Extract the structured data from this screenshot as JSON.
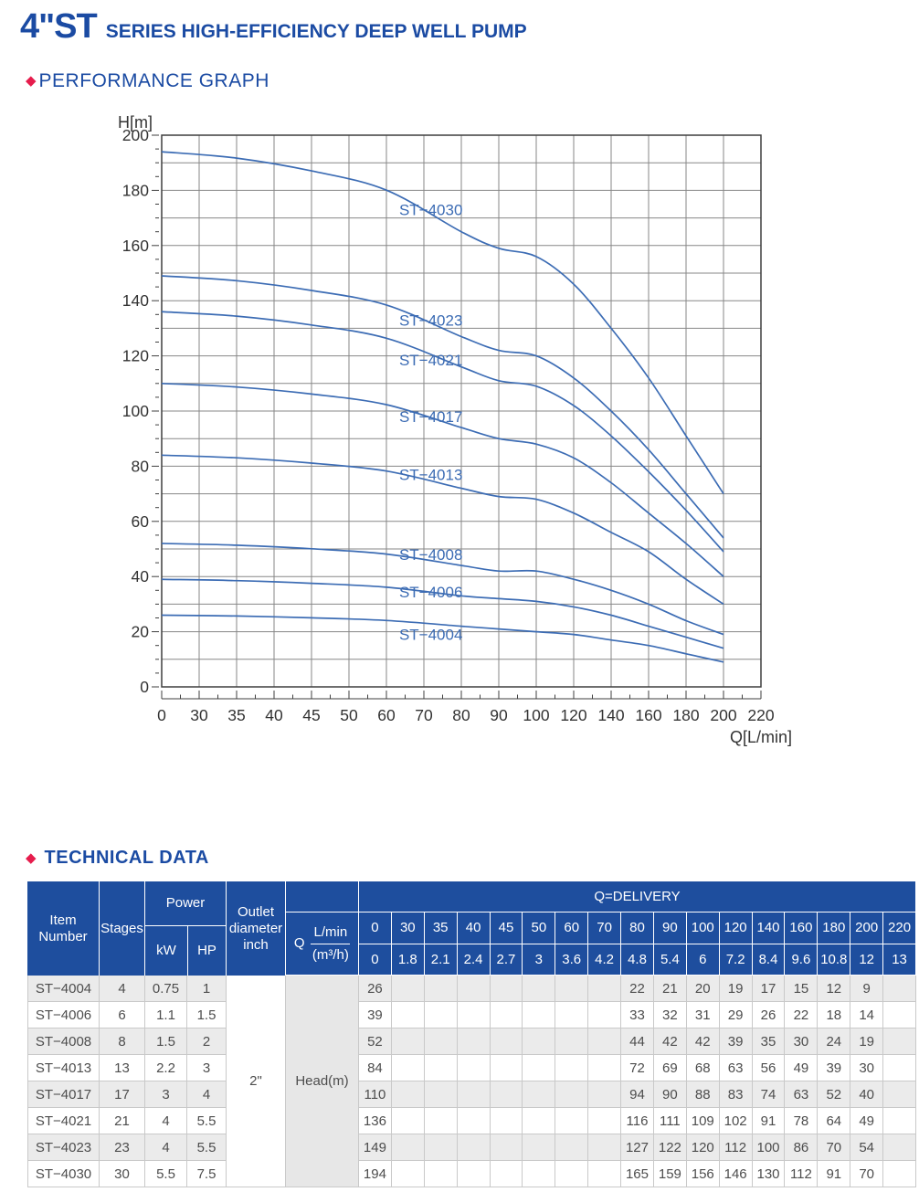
{
  "header": {
    "title_main": "4\"ST",
    "title_sub": "SERIES HIGH-EFFICIENCY DEEP WELL PUMP"
  },
  "sections": {
    "performance": {
      "bullet": "◆",
      "title": "PERFORMANCE GRAPH"
    },
    "technical": {
      "bullet": "◆",
      "title": "TECHNICAL DATA"
    }
  },
  "colors": {
    "accent_blue": "#1b4ba3",
    "diamond_red": "#e61c4c",
    "table_header_blue": "#1e4e9e",
    "curve_blue": "#3c6cb4",
    "grid_gray": "#878787",
    "frame_gray": "#3f3f3f",
    "axis_text": "#333333",
    "stripe_gray": "#ebebeb",
    "head_col_gray": "#e7e7e7",
    "border_gray": "#c9c9c9",
    "body_text": "#4d4d4d"
  },
  "chart_data": {
    "type": "line",
    "title": "",
    "xlabel": "Q[L/min]",
    "ylabel": "H[m]",
    "x_scale": "categorical-equal-spacing",
    "x_ticks": [
      0,
      30,
      35,
      40,
      45,
      50,
      60,
      70,
      80,
      90,
      100,
      120,
      140,
      160,
      180,
      200,
      220
    ],
    "ylim": [
      0,
      200
    ],
    "y_major": 20,
    "y_grid": 10,
    "y_tick_minor": 5,
    "grid": true,
    "legend_position": "on-curve-labels",
    "label_x_index": 6.34,
    "series": [
      {
        "name": "ST−4004",
        "q": [
          0,
          80,
          90,
          100,
          120,
          140,
          160,
          180,
          200
        ],
        "h": [
          26,
          22,
          21,
          20,
          19,
          17,
          15,
          12,
          9
        ],
        "label_h": 19
      },
      {
        "name": "ST−4006",
        "q": [
          0,
          80,
          90,
          100,
          120,
          140,
          160,
          180,
          200
        ],
        "h": [
          39,
          33,
          32,
          31,
          29,
          26,
          22,
          18,
          14
        ],
        "label_h": 34.5
      },
      {
        "name": "ST−4008",
        "q": [
          0,
          80,
          90,
          100,
          120,
          140,
          160,
          180,
          200
        ],
        "h": [
          52,
          44,
          42,
          42,
          39,
          35,
          30,
          24,
          19
        ],
        "label_h": 48
      },
      {
        "name": "ST−4013",
        "q": [
          0,
          80,
          90,
          100,
          120,
          140,
          160,
          180,
          200
        ],
        "h": [
          84,
          72,
          69,
          68,
          63,
          56,
          49,
          39,
          30
        ],
        "label_h": 77
      },
      {
        "name": "ST−4017",
        "q": [
          0,
          80,
          90,
          100,
          120,
          140,
          160,
          180,
          200
        ],
        "h": [
          110,
          94,
          90,
          88,
          83,
          74,
          63,
          52,
          40
        ],
        "label_h": 98
      },
      {
        "name": "ST−4021",
        "q": [
          0,
          80,
          90,
          100,
          120,
          140,
          160,
          180,
          200
        ],
        "h": [
          136,
          116,
          111,
          109,
          102,
          91,
          78,
          64,
          49
        ],
        "label_h": 118.5
      },
      {
        "name": "ST−4023",
        "q": [
          0,
          80,
          90,
          100,
          120,
          140,
          160,
          180,
          200
        ],
        "h": [
          149,
          127,
          122,
          120,
          112,
          100,
          86,
          70,
          54
        ],
        "label_h": 133
      },
      {
        "name": "ST−4030",
        "q": [
          0,
          80,
          90,
          100,
          120,
          140,
          160,
          180,
          200
        ],
        "h": [
          194,
          165,
          159,
          156,
          146,
          130,
          112,
          91,
          70
        ],
        "label_h": 173
      }
    ]
  },
  "table": {
    "header": {
      "item": "Item Number",
      "stages": "Stages",
      "power": "Power",
      "kw": "kW",
      "hp": "HP",
      "outlet": "Outlet diameter inch",
      "q_label": "Q",
      "q_top": "L/min",
      "q_bottom": "(m³/h)",
      "delivery": "Q=DELIVERY",
      "lmin_values": [
        "0",
        "30",
        "35",
        "40",
        "45",
        "50",
        "60",
        "70",
        "80",
        "90",
        "100",
        "120",
        "140",
        "160",
        "180",
        "200",
        "220"
      ],
      "m3h_values": [
        "0",
        "1.8",
        "2.1",
        "2.4",
        "2.7",
        "3",
        "3.6",
        "4.2",
        "4.8",
        "5.4",
        "6",
        "7.2",
        "8.4",
        "9.6",
        "10.8",
        "12",
        "13"
      ]
    },
    "outlet_value": "2\"",
    "head_label": "Head(m)",
    "rows": [
      {
        "item": "ST−4004",
        "stages": "4",
        "kw": "0.75",
        "hp": "1",
        "values": [
          "26",
          "",
          "",
          "",
          "",
          "",
          "",
          "",
          "22",
          "21",
          "20",
          "19",
          "17",
          "15",
          "12",
          "9",
          ""
        ]
      },
      {
        "item": "ST−4006",
        "stages": "6",
        "kw": "1.1",
        "hp": "1.5",
        "values": [
          "39",
          "",
          "",
          "",
          "",
          "",
          "",
          "",
          "33",
          "32",
          "31",
          "29",
          "26",
          "22",
          "18",
          "14",
          ""
        ]
      },
      {
        "item": "ST−4008",
        "stages": "8",
        "kw": "1.5",
        "hp": "2",
        "values": [
          "52",
          "",
          "",
          "",
          "",
          "",
          "",
          "",
          "44",
          "42",
          "42",
          "39",
          "35",
          "30",
          "24",
          "19",
          ""
        ]
      },
      {
        "item": "ST−4013",
        "stages": "13",
        "kw": "2.2",
        "hp": "3",
        "values": [
          "84",
          "",
          "",
          "",
          "",
          "",
          "",
          "",
          "72",
          "69",
          "68",
          "63",
          "56",
          "49",
          "39",
          "30",
          ""
        ]
      },
      {
        "item": "ST−4017",
        "stages": "17",
        "kw": "3",
        "hp": "4",
        "values": [
          "110",
          "",
          "",
          "",
          "",
          "",
          "",
          "",
          "94",
          "90",
          "88",
          "83",
          "74",
          "63",
          "52",
          "40",
          ""
        ]
      },
      {
        "item": "ST−4021",
        "stages": "21",
        "kw": "4",
        "hp": "5.5",
        "values": [
          "136",
          "",
          "",
          "",
          "",
          "",
          "",
          "",
          "116",
          "111",
          "109",
          "102",
          "91",
          "78",
          "64",
          "49",
          ""
        ]
      },
      {
        "item": "ST−4023",
        "stages": "23",
        "kw": "4",
        "hp": "5.5",
        "values": [
          "149",
          "",
          "",
          "",
          "",
          "",
          "",
          "",
          "127",
          "122",
          "120",
          "112",
          "100",
          "86",
          "70",
          "54",
          ""
        ]
      },
      {
        "item": "ST−4030",
        "stages": "30",
        "kw": "5.5",
        "hp": "7.5",
        "values": [
          "194",
          "",
          "",
          "",
          "",
          "",
          "",
          "",
          "165",
          "159",
          "156",
          "146",
          "130",
          "112",
          "91",
          "70",
          ""
        ]
      }
    ]
  }
}
